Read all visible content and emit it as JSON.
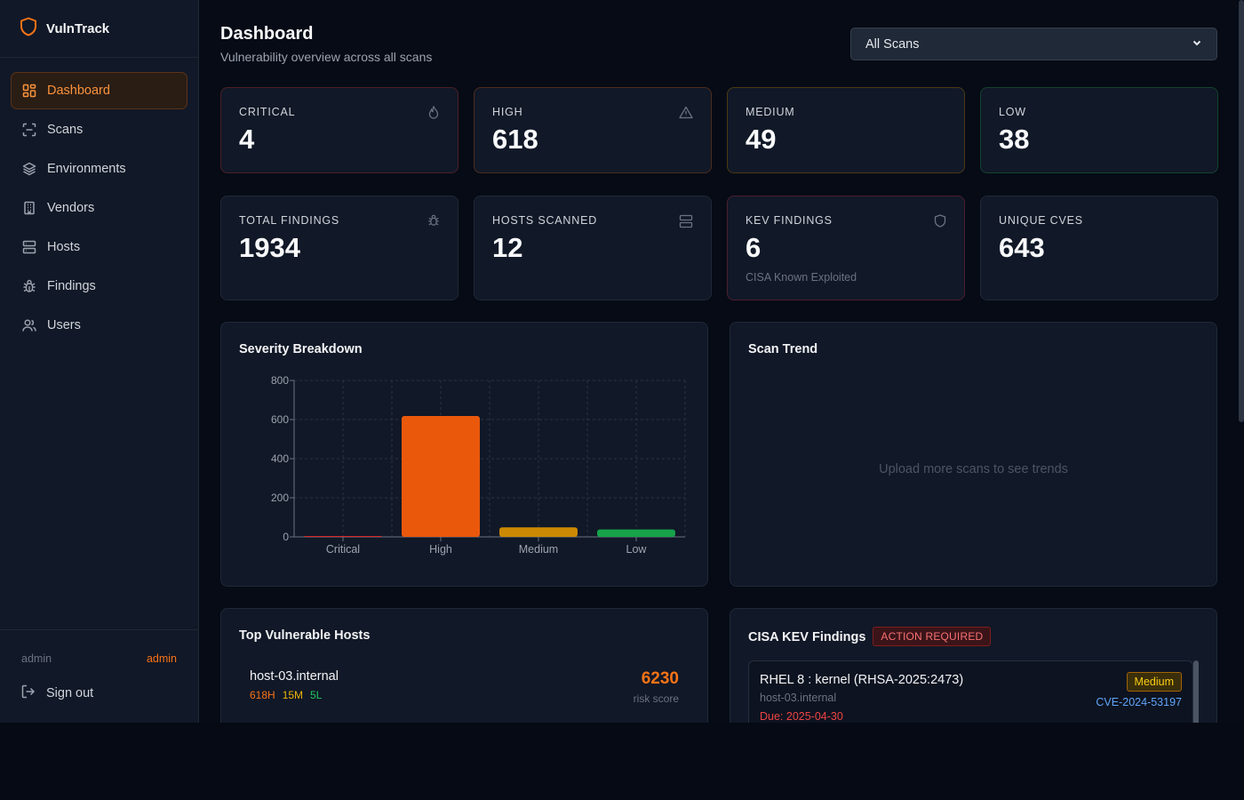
{
  "app": {
    "name": "VulnTrack",
    "accent": "#f97316"
  },
  "sidebar": {
    "items": [
      {
        "label": "Dashboard",
        "icon": "dashboard-icon",
        "active": true
      },
      {
        "label": "Scans",
        "icon": "scan-icon"
      },
      {
        "label": "Environments",
        "icon": "layers-icon"
      },
      {
        "label": "Vendors",
        "icon": "building-icon"
      },
      {
        "label": "Hosts",
        "icon": "server-icon"
      },
      {
        "label": "Findings",
        "icon": "bug-icon"
      },
      {
        "label": "Users",
        "icon": "users-icon"
      }
    ],
    "user": {
      "name": "admin",
      "role": "admin"
    },
    "signout": "Sign out"
  },
  "header": {
    "title": "Dashboard",
    "subtitle": "Vulnerability overview across all scans",
    "scan_select": "All Scans"
  },
  "stats": {
    "critical": {
      "label": "CRITICAL",
      "value": "4",
      "color": "#ef4444"
    },
    "high": {
      "label": "HIGH",
      "value": "618",
      "color": "#f97316"
    },
    "medium": {
      "label": "MEDIUM",
      "value": "49",
      "color": "#eab308"
    },
    "low": {
      "label": "LOW",
      "value": "38",
      "color": "#22c55e"
    },
    "total": {
      "label": "TOTAL FINDINGS",
      "value": "1934"
    },
    "hosts": {
      "label": "HOSTS SCANNED",
      "value": "12"
    },
    "kev": {
      "label": "KEV FINDINGS",
      "value": "6",
      "sub": "CISA Known Exploited"
    },
    "cves": {
      "label": "UNIQUE CVES",
      "value": "643"
    }
  },
  "severity_panel": {
    "title": "Severity Breakdown"
  },
  "trend_panel": {
    "title": "Scan Trend",
    "empty": "Upload more scans to see trends"
  },
  "hosts_panel": {
    "title": "Top Vulnerable Hosts",
    "rows": [
      {
        "host": "host-03.internal",
        "high": "618H",
        "medium": "15M",
        "low": "5L",
        "score": "6230",
        "score_label": "risk score"
      }
    ]
  },
  "kev_panel": {
    "title": "CISA KEV Findings",
    "badge": "ACTION REQUIRED",
    "items": [
      {
        "title": "RHEL 8 : kernel (RHSA-2025:2473)",
        "host": "host-03.internal",
        "due": "Due: 2025-04-30",
        "severity": "Medium",
        "cve": "CVE-2024-53197"
      }
    ]
  },
  "chart_data": {
    "type": "bar",
    "title": "Severity Breakdown",
    "categories": [
      "Critical",
      "High",
      "Medium",
      "Low"
    ],
    "values": [
      4,
      618,
      49,
      38
    ],
    "colors": [
      "#dc2626",
      "#ea580c",
      "#ca8a04",
      "#16a34a"
    ],
    "yticks": [
      0,
      200,
      400,
      600,
      800
    ],
    "ylim": [
      0,
      800
    ],
    "grid": true,
    "legend": "none"
  }
}
